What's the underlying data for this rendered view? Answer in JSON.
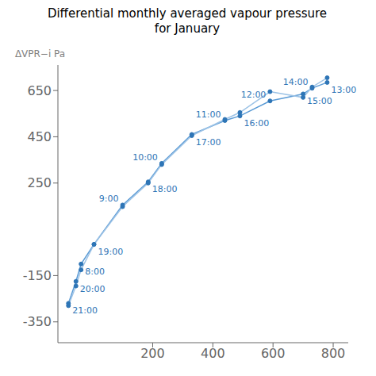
{
  "chart_data": {
    "type": "line",
    "title": "Differential monthly averaged vapour pressure\nfor January",
    "y_label": "ΔVPR−i Pa",
    "x": [
      -80,
      -55,
      -38,
      5,
      100,
      185,
      230,
      330,
      440,
      490,
      590,
      700,
      730,
      780
    ],
    "series": [
      {
        "color": "#5b9bd5",
        "values": [
          -270,
          -175,
          -100,
          -15,
          155,
          255,
          335,
          460,
          520,
          540,
          605,
          635,
          660,
          685
        ]
      },
      {
        "color": "#9dc3e6",
        "values": [
          -280,
          -195,
          -125,
          -15,
          148,
          250,
          330,
          455,
          525,
          555,
          645,
          620,
          665,
          705
        ]
      }
    ],
    "color": "#2e75b6",
    "marker": "circle",
    "annotations": [
      {
        "text": "21:00",
        "x": -80,
        "y": -270
      },
      {
        "text": "20:00",
        "x": -55,
        "y": -175
      },
      {
        "text": "8:00",
        "x": -38,
        "y": -100
      },
      {
        "text": "19:00",
        "x": 5,
        "y": -15
      },
      {
        "text": "9:00",
        "x": 100,
        "y": 155
      },
      {
        "text": "18:00",
        "x": 185,
        "y": 255
      },
      {
        "text": "10:00",
        "x": 230,
        "y": 335
      },
      {
        "text": "17:00",
        "x": 330,
        "y": 460
      },
      {
        "text": "11:00",
        "x": 440,
        "y": 520
      },
      {
        "text": "16:00",
        "x": 490,
        "y": 540
      },
      {
        "text": "12:00",
        "x": 590,
        "y": 605
      },
      {
        "text": "15:00",
        "x": 700,
        "y": 635
      },
      {
        "text": "14:00",
        "x": 730,
        "y": 660
      },
      {
        "text": "13:00",
        "x": 780,
        "y": 685
      }
    ],
    "xlim": [
      -115,
      850
    ],
    "xticks": [
      200,
      400,
      600,
      800
    ],
    "ylim": [
      -440,
      760
    ],
    "yticks": [
      -350,
      -150,
      250,
      450,
      650
    ],
    "grid": false
  }
}
